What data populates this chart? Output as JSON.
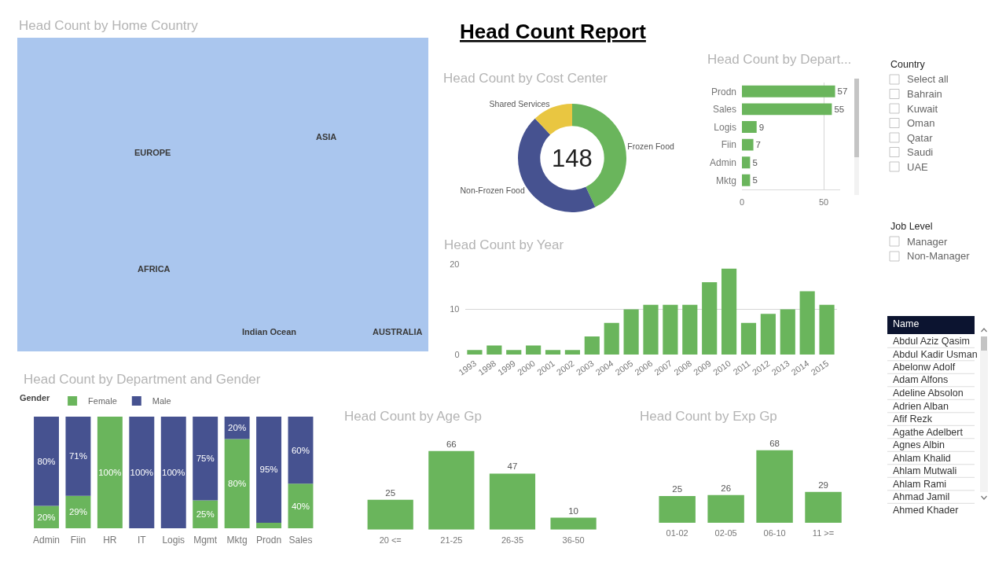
{
  "chart_data": [
    {
      "type": "other",
      "title": "Head Count Report"
    },
    {
      "type": "other",
      "title": "Head Count by Home Country",
      "annotations": [
        "EUROPE",
        "ASIA",
        "AFRICA",
        "Indian Ocean",
        "AUSTRALIA"
      ]
    },
    {
      "type": "donut",
      "title": "Head Count by Cost Center",
      "categories": [
        "Frozen Food",
        "Non-Frozen Food",
        "Shared Services"
      ],
      "values": [
        43,
        45,
        12
      ],
      "colors": [
        "#6ab55c",
        "#465290",
        "#e9c641"
      ],
      "annotations": [
        "148"
      ]
    },
    {
      "type": "bar",
      "orientation": "horizontal",
      "title": "Head Count by Depart...",
      "categories": [
        "Prodn",
        "Sales",
        "Logis",
        "Fiin",
        "Admin",
        "Mktg"
      ],
      "values": [
        57,
        55,
        9,
        7,
        5,
        5
      ],
      "color": "#6ab55c",
      "xlim": [
        0,
        60
      ],
      "xticks": [
        0,
        50
      ],
      "grid": "x",
      "data_labels": true
    },
    {
      "type": "other",
      "title": "Country",
      "annotations": [
        "Select all",
        "Bahrain",
        "Kuwait",
        "Oman",
        "Qatar",
        "Saudi",
        "UAE"
      ]
    },
    {
      "type": "other",
      "title": "Job Level",
      "annotations": [
        "Manager",
        "Non-Manager"
      ]
    },
    {
      "type": "bar",
      "title": "Head Count by Year",
      "categories": [
        "1993",
        "1998",
        "1999",
        "2000",
        "2001",
        "2002",
        "2003",
        "2004",
        "2005",
        "2006",
        "2007",
        "2008",
        "2009",
        "2010",
        "2011",
        "2012",
        "2013",
        "2014",
        "2015"
      ],
      "values": [
        1,
        2,
        1,
        2,
        1,
        1,
        4,
        7,
        10,
        11,
        11,
        11,
        16,
        19,
        7,
        9,
        10,
        14,
        11
      ],
      "color": "#6ab55c",
      "ylim": [
        0,
        20
      ],
      "yticks": [
        0,
        10,
        20
      ],
      "grid": "y"
    },
    {
      "type": "other",
      "title": "Name",
      "annotations": [
        "Abdul Aziz Qasim",
        "Abdul Kadir Usman",
        "Abelonw Adolf",
        "Adam Alfons",
        "Adeline Absolon",
        "Adrien Alban",
        "Afif Rezk",
        "Agathe Adelbert",
        "Agnes Albin",
        "Ahlam Khalid",
        "Ahlam Mutwali",
        "Ahlam Rami",
        "Ahmad Jamil",
        "Ahmed Khader"
      ]
    },
    {
      "type": "bar",
      "stacked": true,
      "title": "Head Count by Department and Gender",
      "legend_title": "Gender",
      "legend": "top left",
      "categories": [
        "Admin",
        "Fiin",
        "HR",
        "IT",
        "Logis",
        "Mgmt",
        "Mktg",
        "Prodn",
        "Sales"
      ],
      "series": [
        {
          "name": "Female",
          "color": "#6ab55c",
          "values": [
            20,
            29,
            100,
            0,
            0,
            25,
            80,
            5,
            40
          ],
          "value_labels": [
            "20%",
            "29%",
            "100%",
            null,
            null,
            "25%",
            "80%",
            null,
            "40%"
          ]
        },
        {
          "name": "Male",
          "color": "#465290",
          "values": [
            80,
            71,
            0,
            100,
            100,
            75,
            20,
            95,
            60
          ],
          "value_labels": [
            "80%",
            "71%",
            null,
            "100%",
            "100%",
            "75%",
            "20%",
            "95%",
            "60%"
          ]
        }
      ],
      "ylim": [
        0,
        100
      ],
      "tick_labels": "x"
    },
    {
      "type": "bar",
      "title": "Head Count by Age Gp",
      "categories": [
        "20 <=",
        "21-25",
        "26-35",
        "36-50"
      ],
      "values": [
        25,
        66,
        47,
        10
      ],
      "color": "#6ab55c",
      "data_labels": true,
      "tick_labels": "x"
    },
    {
      "type": "bar",
      "title": "Head Count by Exp Gp",
      "categories": [
        "01-02",
        "02-05",
        "06-10",
        "11 >="
      ],
      "values": [
        25,
        26,
        68,
        29
      ],
      "color": "#6ab55c",
      "data_labels": true,
      "tick_labels": "x"
    }
  ]
}
